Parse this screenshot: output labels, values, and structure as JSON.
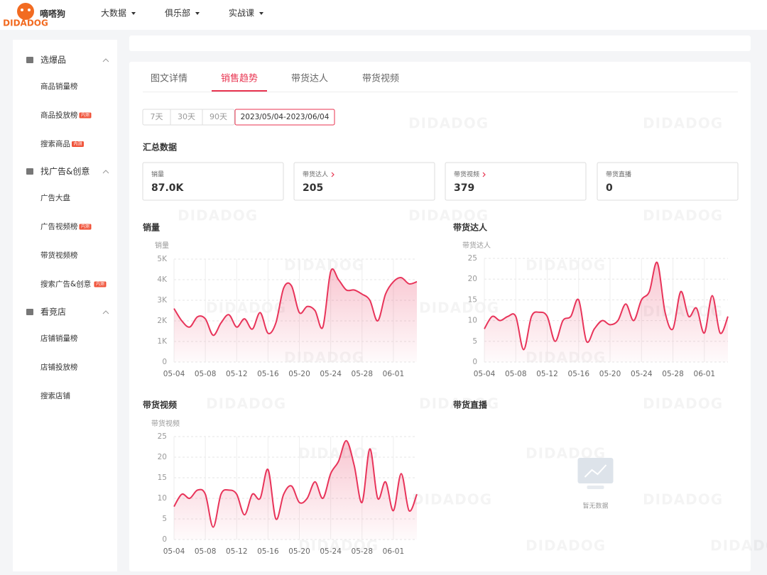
{
  "nav": {
    "brand": "嘀嗒狗",
    "logo_sub": "DIDADOG",
    "menu": [
      "大数据",
      "俱乐部",
      "实战课"
    ]
  },
  "sidebar": [
    {
      "title": "选爆品",
      "items": [
        {
          "label": "商品销量榜"
        },
        {
          "label": "商品投放榜",
          "badge": "内测"
        },
        {
          "label": "搜索商品",
          "badge": "内测"
        }
      ]
    },
    {
      "title": "找广告&创意",
      "items": [
        {
          "label": "广告大盘"
        },
        {
          "label": "广告视频榜",
          "badge": "内测"
        },
        {
          "label": "带货视频榜"
        },
        {
          "label": "搜索广告&创意",
          "badge": "内测"
        }
      ]
    },
    {
      "title": "看竞店",
      "items": [
        {
          "label": "店铺销量榜"
        },
        {
          "label": "店铺投放榜"
        },
        {
          "label": "搜索店铺"
        }
      ]
    }
  ],
  "tabs": {
    "items": [
      "图文详情",
      "销售趋势",
      "带货达人",
      "带货视频"
    ],
    "active": 1
  },
  "date_range": {
    "options": [
      "7天",
      "30天",
      "90天"
    ],
    "selected": "2023/05/04-2023/06/04"
  },
  "summary": {
    "title": "汇总数据",
    "cards": [
      {
        "label": "销量",
        "value": "87.0K",
        "link": false
      },
      {
        "label": "带货达人",
        "value": "205",
        "link": true
      },
      {
        "label": "带货视频",
        "value": "379",
        "link": true
      },
      {
        "label": "带货直播",
        "value": "0",
        "link": false
      }
    ]
  },
  "watermark": "DIDADOG",
  "chart_data": [
    {
      "type": "line",
      "title": "销量",
      "ylabel": "销量",
      "color": "#e8345a",
      "categories": [
        "05-04",
        null,
        null,
        null,
        "05-08",
        null,
        null,
        null,
        "05-12",
        null,
        null,
        null,
        "05-16",
        null,
        null,
        null,
        "05-20",
        null,
        null,
        null,
        "05-24",
        null,
        null,
        null,
        "05-28",
        null,
        null,
        null,
        "06-01",
        null,
        null,
        null
      ],
      "values": [
        2600,
        2000,
        1700,
        2200,
        2100,
        1300,
        1900,
        2300,
        1700,
        2100,
        1600,
        2400,
        1400,
        1900,
        3600,
        3700,
        2400,
        2700,
        2500,
        1700,
        4400,
        4000,
        3500,
        3500,
        3300,
        3000,
        2000,
        3300,
        3900,
        4100,
        3800,
        3900
      ],
      "ylim": [
        0,
        5000
      ],
      "yticks": [
        0,
        {
          "value": 1000,
          "label": "1K"
        },
        {
          "value": 2000,
          "label": "2K"
        },
        {
          "value": 3000,
          "label": "3K"
        },
        {
          "value": 4000,
          "label": "4K"
        },
        {
          "value": 5000,
          "label": "5K"
        }
      ]
    },
    {
      "type": "line",
      "title": "带货达人",
      "ylabel": "带货达人",
      "color": "#e8345a",
      "categories": [
        "05-04",
        null,
        null,
        null,
        "05-08",
        null,
        null,
        null,
        "05-12",
        null,
        null,
        null,
        "05-16",
        null,
        null,
        null,
        "05-20",
        null,
        null,
        null,
        "05-24",
        null,
        null,
        null,
        "05-28",
        null,
        null,
        null,
        "06-01",
        null,
        null,
        null
      ],
      "values": [
        8,
        11,
        10,
        11,
        11,
        3,
        11,
        12,
        11,
        5,
        10,
        11,
        15,
        5,
        8,
        10,
        9,
        10,
        14,
        10,
        15,
        17,
        24,
        12,
        8,
        17,
        11,
        13,
        7,
        16,
        7,
        11
      ],
      "ylim": [
        0,
        25
      ],
      "yticks": [
        0,
        5,
        10,
        15,
        20,
        25
      ]
    },
    {
      "type": "line",
      "title": "带货视频",
      "ylabel": "带货视频",
      "color": "#e8345a",
      "categories": [
        "05-04",
        null,
        null,
        null,
        "05-08",
        null,
        null,
        null,
        "05-12",
        null,
        null,
        null,
        "05-16",
        null,
        null,
        null,
        "05-20",
        null,
        null,
        null,
        "05-24",
        null,
        null,
        null,
        "05-28",
        null,
        null,
        null,
        "06-01",
        null,
        null,
        null
      ],
      "values": [
        8,
        11,
        10,
        12,
        11,
        3,
        11,
        12,
        11,
        6,
        11,
        10,
        17,
        5,
        11,
        13,
        9,
        10,
        14,
        10,
        16,
        19,
        24,
        18,
        9,
        22,
        10,
        14,
        7,
        16,
        7,
        11
      ],
      "ylim": [
        0,
        25
      ],
      "yticks": [
        0,
        5,
        10,
        15,
        20,
        25
      ]
    },
    {
      "type": "empty",
      "title": "带货直播",
      "no_data": "暂无数据"
    }
  ]
}
